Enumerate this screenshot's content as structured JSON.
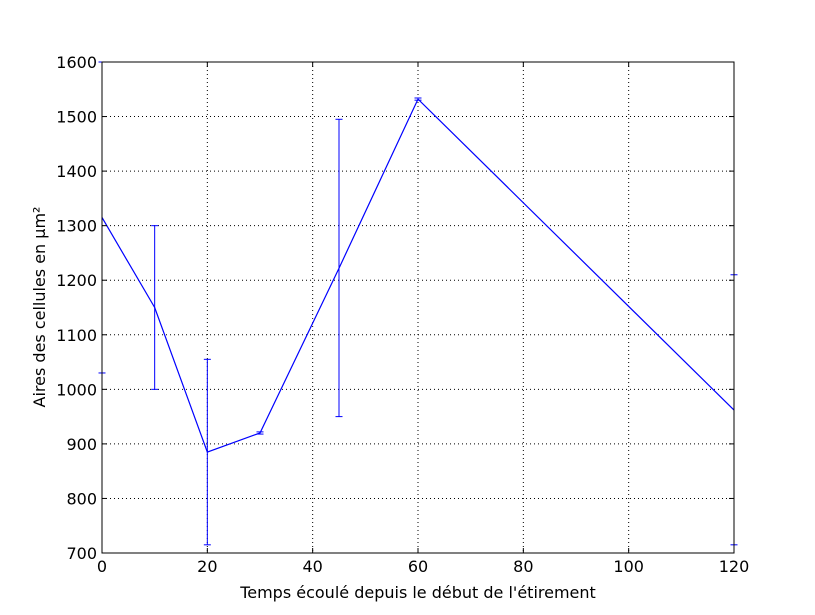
{
  "chart_data": {
    "type": "line",
    "xlabel": "Temps écoulé depuis le début de l'étirement",
    "ylabel": "Aires des cellules en µm²",
    "xlim": [
      0,
      120
    ],
    "ylim": [
      700,
      1600
    ],
    "xticks": [
      0,
      20,
      40,
      60,
      80,
      100,
      120
    ],
    "yticks": [
      700,
      800,
      900,
      1000,
      1100,
      1200,
      1300,
      1400,
      1500,
      1600
    ],
    "grid": true,
    "color": "#0000ff",
    "series": [
      {
        "x": [
          0,
          10,
          20,
          30,
          45,
          60,
          120
        ],
        "y": [
          1315,
          1150,
          885,
          920,
          1222,
          1532,
          962
        ],
        "err_low": [
          1030,
          1000,
          715,
          918,
          950,
          1530,
          715
        ],
        "err_high": [
          1600,
          1300,
          1055,
          922,
          1495,
          1534,
          1210
        ]
      }
    ]
  }
}
